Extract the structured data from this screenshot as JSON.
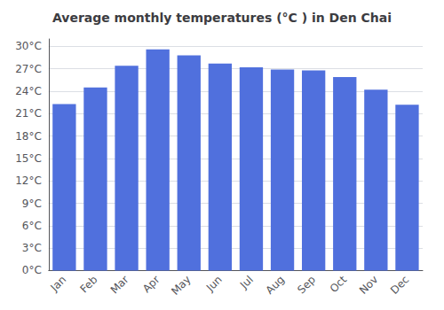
{
  "chart_data": {
    "type": "bar",
    "title": "Average monthly temperatures (°C ) in Den Chai",
    "categories": [
      "Jan",
      "Feb",
      "Mar",
      "Apr",
      "May",
      "Jun",
      "Jul",
      "Aug",
      "Sep",
      "Oct",
      "Nov",
      "Dec"
    ],
    "values": [
      22.3,
      24.5,
      27.4,
      29.6,
      28.8,
      27.7,
      27.2,
      26.9,
      26.8,
      25.9,
      24.2,
      22.2
    ],
    "ylim": [
      0,
      31
    ],
    "yticks": [
      {
        "value": 0,
        "label": "0°C"
      },
      {
        "value": 3,
        "label": "3°C"
      },
      {
        "value": 6,
        "label": "6°C"
      },
      {
        "value": 9,
        "label": "9°C"
      },
      {
        "value": 12,
        "label": "12°C"
      },
      {
        "value": 15,
        "label": "15°C"
      },
      {
        "value": 18,
        "label": "18°C"
      },
      {
        "value": 21,
        "label": "21°C"
      },
      {
        "value": 24,
        "label": "24°C"
      },
      {
        "value": 27,
        "label": "27°C"
      },
      {
        "value": 30,
        "label": "30°C"
      }
    ],
    "grid": true
  }
}
